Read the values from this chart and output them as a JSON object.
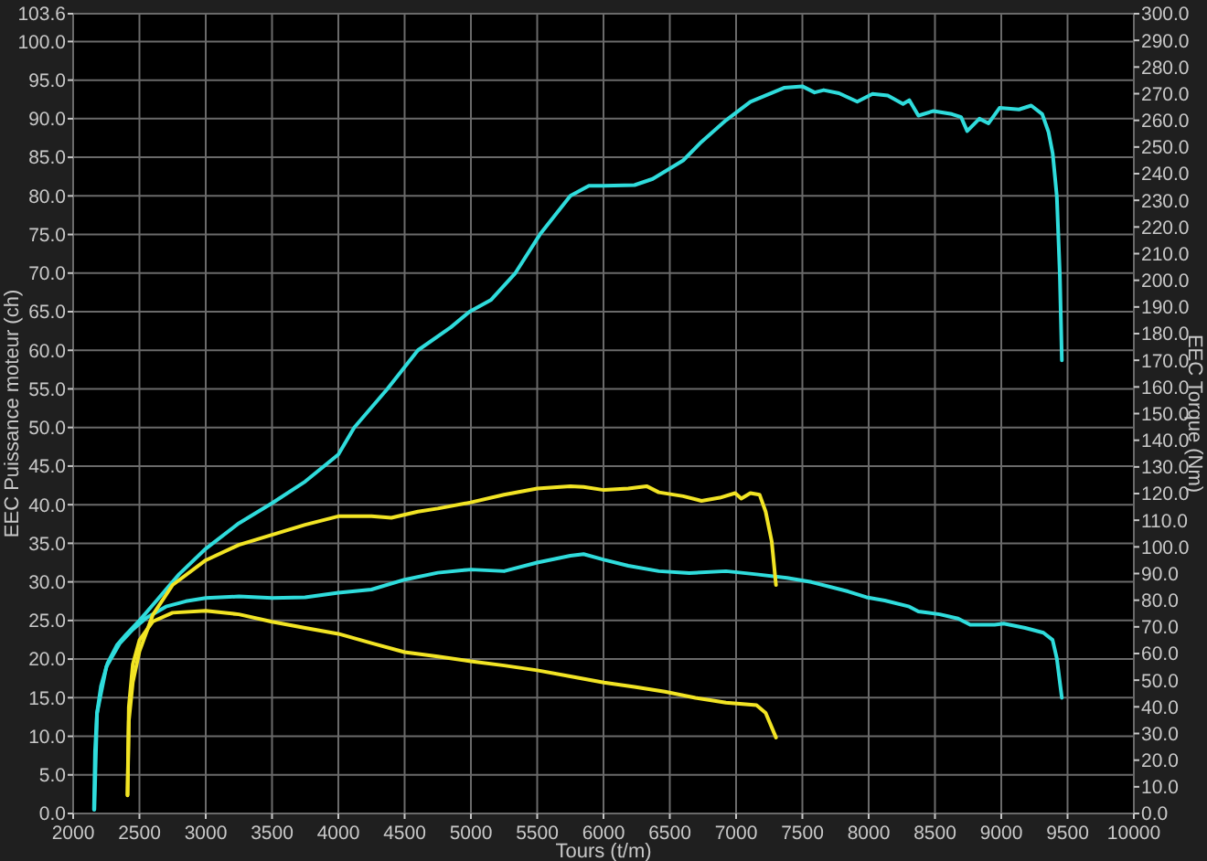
{
  "chart_data": {
    "type": "line",
    "xlabel": "Tours (t/m)",
    "ylabel": "EEC Puissance moteur (ch)",
    "y2label": "EEC Torque (Nm)",
    "xlim": [
      2000,
      10000
    ],
    "xticks": [
      2000,
      2500,
      3000,
      3500,
      4000,
      4500,
      5000,
      5500,
      6000,
      6500,
      7000,
      7500,
      8000,
      8500,
      9000,
      9500,
      10000
    ],
    "ylim": [
      0,
      103.6
    ],
    "yticks": [
      {
        "value": 0,
        "label": "0.0"
      },
      {
        "value": 5,
        "label": "5.0"
      },
      {
        "value": 10,
        "label": "10.0"
      },
      {
        "value": 15,
        "label": "15.0"
      },
      {
        "value": 20,
        "label": "20.0"
      },
      {
        "value": 25,
        "label": "25.0"
      },
      {
        "value": 30,
        "label": "30.0"
      },
      {
        "value": 35,
        "label": "35.0"
      },
      {
        "value": 40,
        "label": "40.0"
      },
      {
        "value": 45,
        "label": "45.0"
      },
      {
        "value": 50,
        "label": "50.0"
      },
      {
        "value": 55,
        "label": "55.0"
      },
      {
        "value": 60,
        "label": "60.0"
      },
      {
        "value": 65,
        "label": "65.0"
      },
      {
        "value": 70,
        "label": "70.0"
      },
      {
        "value": 75,
        "label": "75.0"
      },
      {
        "value": 80,
        "label": "80.0"
      },
      {
        "value": 85,
        "label": "85.0"
      },
      {
        "value": 90,
        "label": "90.0"
      },
      {
        "value": 95,
        "label": "95.0"
      },
      {
        "value": 100,
        "label": "100.0"
      },
      {
        "value": 103.6,
        "label": "103.6"
      }
    ],
    "y2lim": [
      0,
      300
    ],
    "y2ticks": [
      {
        "value": 0,
        "label": "0.0"
      },
      {
        "value": 10,
        "label": "10.0"
      },
      {
        "value": 20,
        "label": "20.0"
      },
      {
        "value": 30,
        "label": "30.0"
      },
      {
        "value": 40,
        "label": "40.0"
      },
      {
        "value": 50,
        "label": "50.0"
      },
      {
        "value": 60,
        "label": "60.0"
      },
      {
        "value": 70,
        "label": "70.0"
      },
      {
        "value": 80,
        "label": "80.0"
      },
      {
        "value": 90,
        "label": "90.0"
      },
      {
        "value": 100,
        "label": "100.0"
      },
      {
        "value": 110,
        "label": "110.0"
      },
      {
        "value": 120,
        "label": "120.0"
      },
      {
        "value": 130,
        "label": "130.0"
      },
      {
        "value": 140,
        "label": "140.0"
      },
      {
        "value": 150,
        "label": "150.0"
      },
      {
        "value": 160,
        "label": "160.0"
      },
      {
        "value": 170,
        "label": "170.0"
      },
      {
        "value": 180,
        "label": "180.0"
      },
      {
        "value": 190,
        "label": "190.0"
      },
      {
        "value": 200,
        "label": "200.0"
      },
      {
        "value": 210,
        "label": "210.0"
      },
      {
        "value": 220,
        "label": "220.0"
      },
      {
        "value": 230,
        "label": "230.0"
      },
      {
        "value": 240,
        "label": "240.0"
      },
      {
        "value": 250,
        "label": "250.0"
      },
      {
        "value": 260,
        "label": "260.0"
      },
      {
        "value": 270,
        "label": "270.0"
      },
      {
        "value": 280,
        "label": "280.0"
      },
      {
        "value": 290,
        "label": "290.0"
      },
      {
        "value": 300,
        "label": "300.0"
      }
    ],
    "grid": true,
    "series": [
      {
        "color": "#2fdcdc",
        "x": [
          2157,
          2165,
          2180,
          2210,
          2260,
          2330,
          2400,
          2500,
          2600,
          2800,
          3000,
          3250,
          3500,
          3750,
          4000,
          4120,
          4370,
          4600,
          4850,
          4990,
          5150,
          5335,
          5520,
          5750,
          5890,
          6000,
          6234,
          6371,
          6601,
          6739,
          6924,
          7108,
          7361,
          7499,
          7592,
          7661,
          7776,
          7914,
          8029,
          8144,
          8259,
          8306,
          8375,
          8489,
          8627,
          8697,
          8743,
          8835,
          8904,
          8987,
          9134,
          9226,
          9309,
          9356,
          9388,
          9419,
          9442,
          9457
        ],
        "values": [
          0.5,
          8,
          13,
          16.5,
          19.5,
          21.8,
          23.2,
          25,
          27,
          31,
          34.3,
          37.6,
          40.2,
          43,
          46.5,
          50,
          55,
          60,
          63,
          65,
          66.5,
          70,
          75,
          80,
          81.3,
          81.3,
          81.4,
          82.2,
          84.6,
          87,
          89.8,
          92.2,
          94,
          94.2,
          93.4,
          93.7,
          93.3,
          92.2,
          93.2,
          93,
          91.9,
          92.4,
          90.4,
          91,
          90.6,
          90.2,
          88.4,
          90,
          89.4,
          91.4,
          91.2,
          91.7,
          90.6,
          88.3,
          85.5,
          80,
          69.7,
          58.7
        ]
      },
      {
        "color": "#2fdcdc",
        "axis": "y2",
        "x": [
          2160,
          2180,
          2250,
          2350,
          2450,
          2550,
          2700,
          2850,
          3000,
          3250,
          3500,
          3750,
          4000,
          4250,
          4500,
          4750,
          5000,
          5250,
          5500,
          5750,
          5850,
          6003,
          6187,
          6417,
          6647,
          6924,
          7154,
          7384,
          7568,
          7844,
          7983,
          8121,
          8306,
          8375,
          8536,
          8674,
          8766,
          8950,
          9019,
          9180,
          9318,
          9387,
          9419,
          9457
        ],
        "values": [
          1.5,
          37.6,
          55,
          63.7,
          69,
          73.3,
          77.6,
          79.6,
          80.8,
          81.4,
          80.8,
          81.1,
          82.8,
          84,
          87.7,
          90.3,
          91.5,
          90.9,
          94.1,
          96.7,
          97.3,
          95.2,
          92.9,
          90.9,
          90.2,
          90.9,
          89.7,
          88.4,
          86.8,
          83.3,
          81.1,
          79.9,
          77.6,
          75.8,
          74.7,
          73.1,
          70.8,
          70.8,
          71.2,
          69.6,
          67.8,
          65.1,
          58.2,
          43.4
        ]
      },
      {
        "color": "#f2e424",
        "x": [
          2410,
          2420,
          2450,
          2500,
          2600,
          2750,
          3000,
          3250,
          3500,
          3750,
          4000,
          4250,
          4400,
          4600,
          4750,
          5000,
          5250,
          5500,
          5750,
          5850,
          6003,
          6187,
          6325,
          6417,
          6601,
          6739,
          6877,
          6993,
          7039,
          7108,
          7177,
          7223,
          7269,
          7301
        ],
        "values": [
          2.4,
          12,
          17,
          21,
          25.7,
          29.6,
          32.8,
          34.8,
          36.1,
          37.4,
          38.5,
          38.5,
          38.3,
          39.1,
          39.5,
          40.3,
          41.3,
          42.1,
          42.4,
          42.3,
          41.9,
          42.1,
          42.4,
          41.6,
          41.1,
          40.5,
          40.9,
          41.5,
          40.8,
          41.5,
          41.3,
          39.1,
          35.2,
          29.6
        ]
      },
      {
        "color": "#f2e424",
        "axis": "y2",
        "x": [
          2410,
          2420,
          2450,
          2500,
          2600,
          2750,
          3000,
          3250,
          3500,
          3750,
          4000,
          4250,
          4500,
          4750,
          5000,
          5250,
          5500,
          5750,
          6003,
          6233,
          6463,
          6693,
          6924,
          7154,
          7223,
          7301
        ],
        "values": [
          6.8,
          40,
          56,
          65,
          72,
          75.3,
          76,
          74.7,
          71.9,
          69.6,
          67.4,
          63.9,
          60.5,
          58.9,
          57.1,
          55.5,
          53.7,
          51.4,
          49.1,
          47.5,
          45.7,
          43.4,
          41.6,
          40.6,
          37.7,
          28.5
        ]
      }
    ]
  }
}
